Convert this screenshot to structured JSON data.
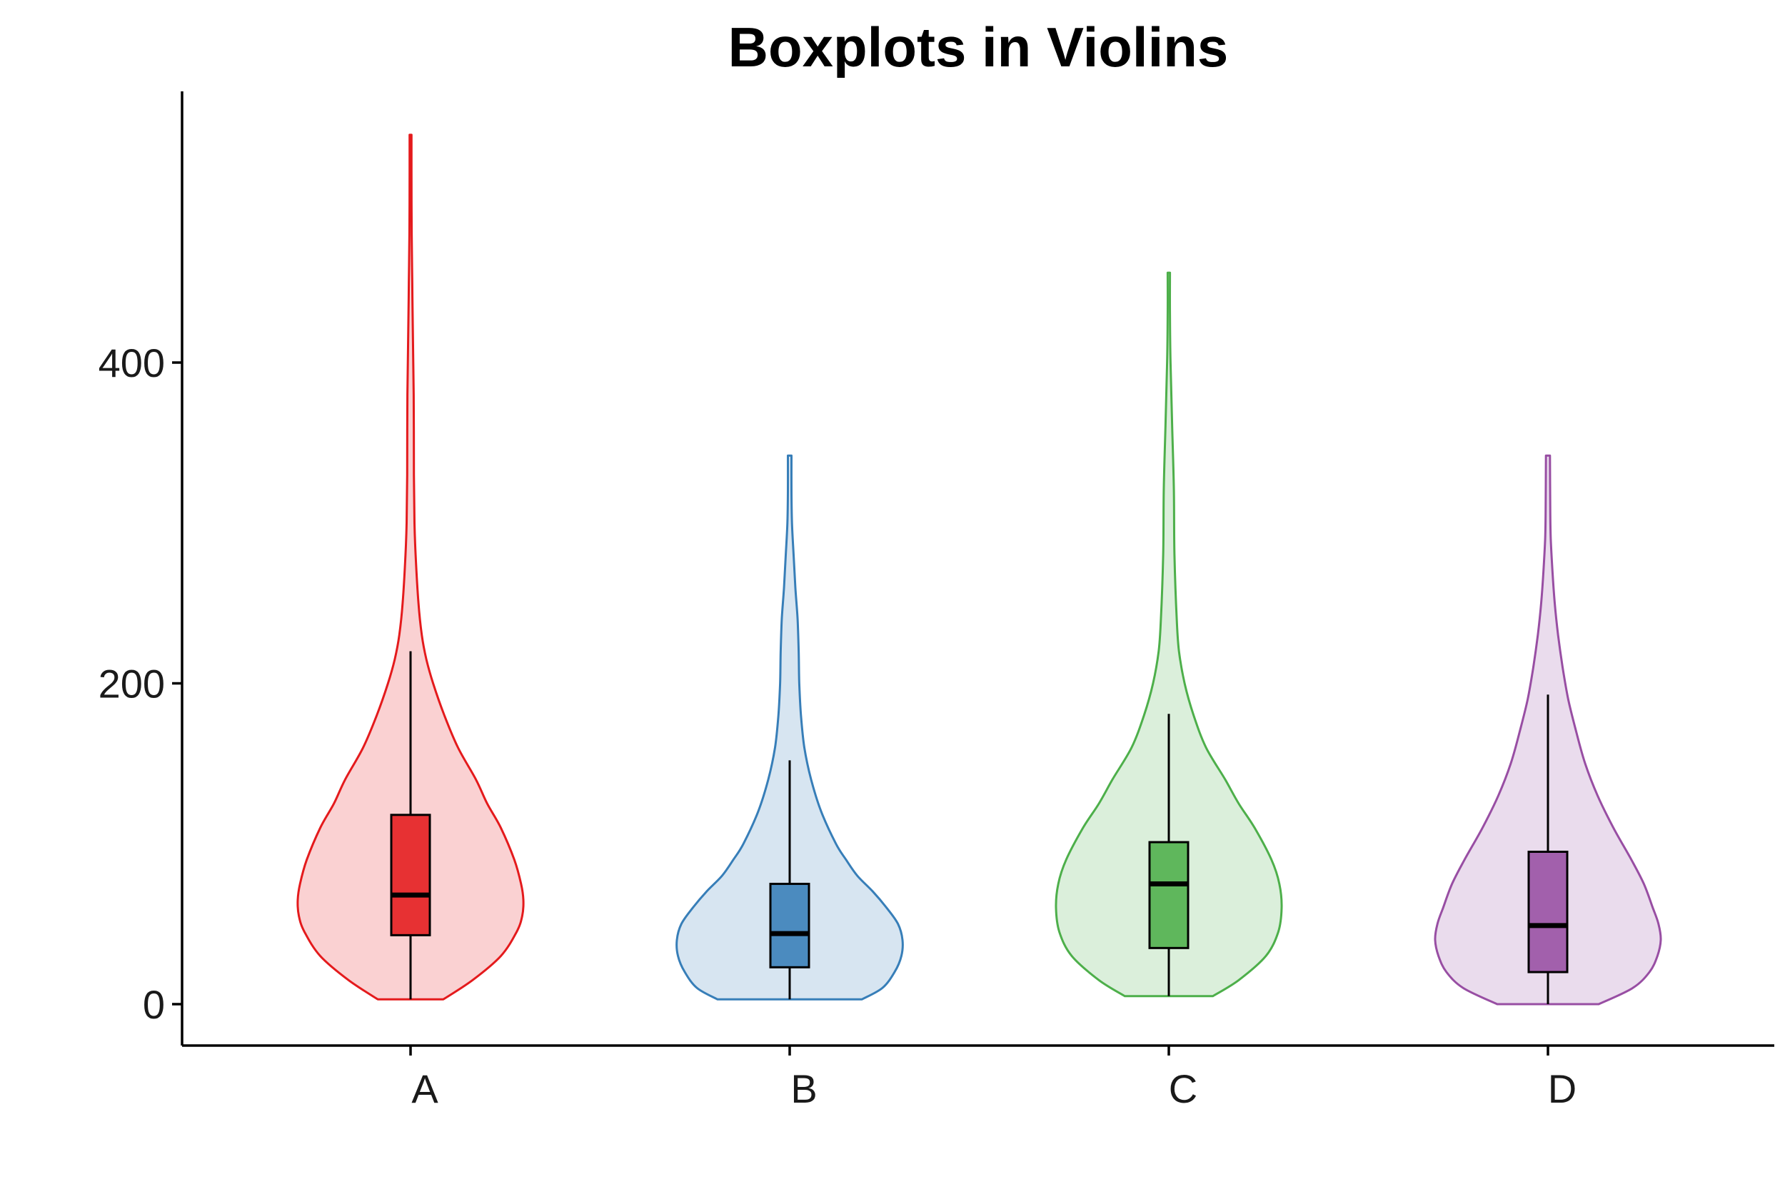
{
  "chart_data": {
    "type": "violin",
    "title": "Boxplots in Violins",
    "xlabel": "",
    "ylabel": "",
    "categories": [
      "A",
      "B",
      "C",
      "D"
    ],
    "y_ticks": [
      0,
      200,
      400
    ],
    "ylim": [
      -25,
      570
    ],
    "grid": false,
    "legend": "none",
    "series": [
      {
        "category": "A",
        "color": "#E41A1C",
        "range": [
          3,
          542
        ],
        "box": {
          "whisker_low": 3,
          "q1": 43,
          "median": 68,
          "q3": 118,
          "whisker_high": 220
        },
        "density": [
          [
            3,
            0.29
          ],
          [
            15,
            0.55
          ],
          [
            30,
            0.8
          ],
          [
            45,
            0.94
          ],
          [
            55,
            0.99
          ],
          [
            65,
            1.0
          ],
          [
            75,
            0.98
          ],
          [
            90,
            0.92
          ],
          [
            110,
            0.8
          ],
          [
            125,
            0.68
          ],
          [
            140,
            0.58
          ],
          [
            160,
            0.42
          ],
          [
            180,
            0.3
          ],
          [
            200,
            0.2
          ],
          [
            215,
            0.14
          ],
          [
            230,
            0.1
          ],
          [
            250,
            0.07
          ],
          [
            280,
            0.045
          ],
          [
            300,
            0.035
          ],
          [
            330,
            0.03
          ],
          [
            380,
            0.028
          ],
          [
            420,
            0.02
          ],
          [
            450,
            0.015
          ],
          [
            480,
            0.01
          ],
          [
            520,
            0.008
          ],
          [
            542,
            0.008
          ]
        ]
      },
      {
        "category": "B",
        "color": "#377EB8",
        "range": [
          3,
          342
        ],
        "box": {
          "whisker_low": 3,
          "q1": 23,
          "median": 44,
          "q3": 75,
          "whisker_high": 152
        },
        "density": [
          [
            3,
            0.64
          ],
          [
            10,
            0.82
          ],
          [
            20,
            0.93
          ],
          [
            30,
            0.99
          ],
          [
            40,
            1.0
          ],
          [
            50,
            0.96
          ],
          [
            60,
            0.86
          ],
          [
            70,
            0.74
          ],
          [
            80,
            0.6
          ],
          [
            90,
            0.5
          ],
          [
            100,
            0.41
          ],
          [
            120,
            0.28
          ],
          [
            140,
            0.19
          ],
          [
            160,
            0.13
          ],
          [
            180,
            0.1
          ],
          [
            200,
            0.085
          ],
          [
            220,
            0.08
          ],
          [
            240,
            0.07
          ],
          [
            260,
            0.05
          ],
          [
            280,
            0.035
          ],
          [
            300,
            0.02
          ],
          [
            320,
            0.016
          ],
          [
            342,
            0.016
          ]
        ]
      },
      {
        "category": "C",
        "color": "#4DAF4A",
        "range": [
          5,
          456
        ],
        "box": {
          "whisker_low": 5,
          "q1": 35,
          "median": 75,
          "q3": 101,
          "whisker_high": 181
        },
        "density": [
          [
            5,
            0.39
          ],
          [
            15,
            0.62
          ],
          [
            30,
            0.86
          ],
          [
            45,
            0.97
          ],
          [
            60,
            1.0
          ],
          [
            75,
            0.98
          ],
          [
            90,
            0.91
          ],
          [
            110,
            0.76
          ],
          [
            125,
            0.62
          ],
          [
            140,
            0.5
          ],
          [
            160,
            0.33
          ],
          [
            180,
            0.22
          ],
          [
            200,
            0.14
          ],
          [
            220,
            0.09
          ],
          [
            240,
            0.07
          ],
          [
            280,
            0.05
          ],
          [
            320,
            0.045
          ],
          [
            360,
            0.03
          ],
          [
            400,
            0.015
          ],
          [
            430,
            0.01
          ],
          [
            456,
            0.01
          ]
        ]
      },
      {
        "category": "D",
        "color": "#984EA3",
        "range": [
          0,
          342
        ],
        "box": {
          "whisker_low": 0,
          "q1": 20,
          "median": 49,
          "q3": 95,
          "whisker_high": 193
        },
        "density": [
          [
            0,
            0.45
          ],
          [
            10,
            0.75
          ],
          [
            20,
            0.9
          ],
          [
            30,
            0.97
          ],
          [
            40,
            1.0
          ],
          [
            50,
            0.98
          ],
          [
            60,
            0.93
          ],
          [
            75,
            0.85
          ],
          [
            90,
            0.74
          ],
          [
            110,
            0.58
          ],
          [
            130,
            0.44
          ],
          [
            150,
            0.33
          ],
          [
            170,
            0.25
          ],
          [
            190,
            0.18
          ],
          [
            210,
            0.13
          ],
          [
            230,
            0.09
          ],
          [
            250,
            0.06
          ],
          [
            270,
            0.04
          ],
          [
            290,
            0.025
          ],
          [
            310,
            0.02
          ],
          [
            342,
            0.018
          ]
        ]
      }
    ]
  }
}
